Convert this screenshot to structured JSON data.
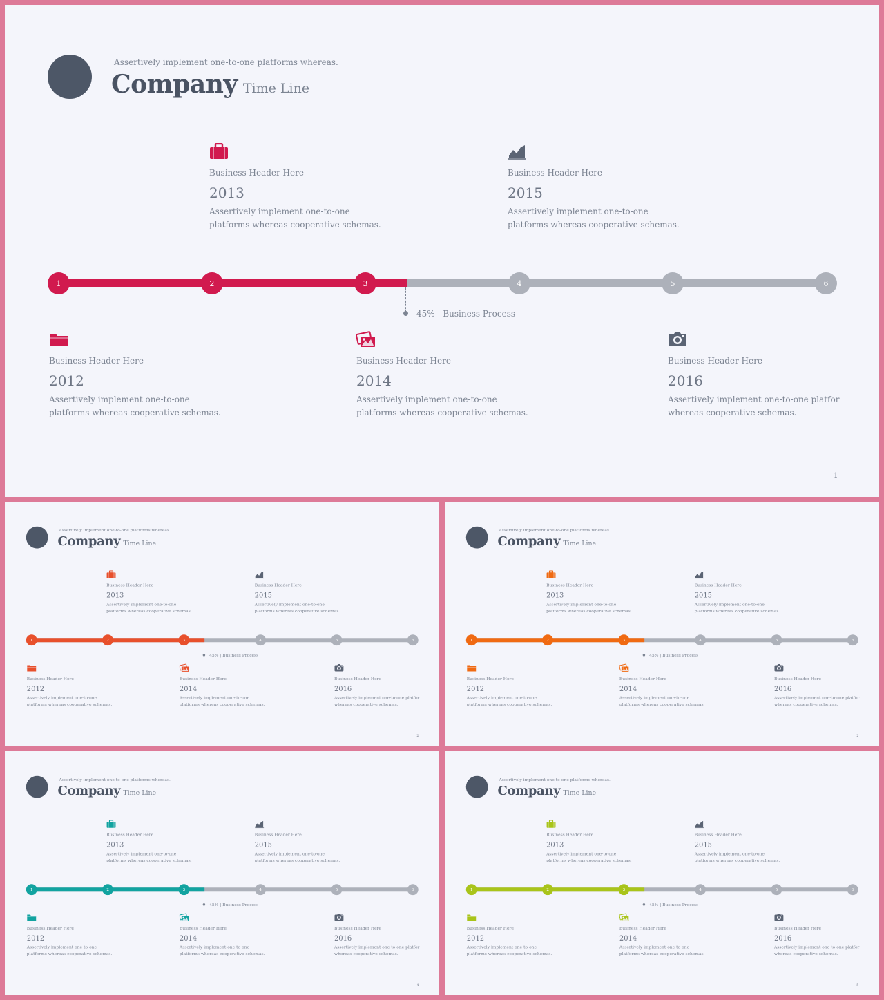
{
  "slides": [
    {
      "accent": "#d11a4e",
      "tagline": "Assertively implement one-to-one platforms whereas.",
      "title": "Company",
      "subtitle": "Time Line",
      "top_cards": [
        {
          "icon": "briefcase-icon",
          "header": "Business Header Here",
          "year": "2013",
          "text": "Assertively implement one-to-one platforms whereas cooperative schemas."
        },
        {
          "icon": "area-chart-icon",
          "header": "Business Header Here",
          "year": "2015",
          "text": "Assertively implement one-to-one platforms whereas cooperative schemas."
        }
      ],
      "bottom_cards": [
        {
          "icon": "folder-icon",
          "header": "Business Header Here",
          "year": "2012",
          "text": "Assertively implement one-to-one platforms whereas cooperative schemas."
        },
        {
          "icon": "images-icon",
          "header": "Business Header Here",
          "year": "2014",
          "text": "Assertively implement one-to-one platforms whereas cooperative schemas."
        },
        {
          "icon": "camera-icon",
          "header": "Business Header Here",
          "year": "2016",
          "text": "Assertively implement one-to-one platfor whereas cooperative schemas."
        }
      ],
      "timeline": {
        "steps": [
          "1",
          "2",
          "3",
          "4",
          "5",
          "6"
        ],
        "progress_percent": 45,
        "progress_label": "45% | Business Process"
      },
      "page_number": "1"
    },
    {
      "accent": "#e8502c",
      "tagline": "Assertively implement one-to-one platforms whereas.",
      "title": "Company",
      "subtitle": "Time Line",
      "top_cards": [
        {
          "icon": "briefcase-icon",
          "header": "Business Header Here",
          "year": "2013",
          "text": "Assertively implement one-to-one platforms whereas cooperative schemas."
        },
        {
          "icon": "area-chart-icon",
          "header": "Business Header Here",
          "year": "2015",
          "text": "Assertively implement one-to-one platforms whereas cooperative schemas."
        }
      ],
      "bottom_cards": [
        {
          "icon": "folder-icon",
          "header": "Business Header Here",
          "year": "2012",
          "text": "Assertively implement one-to-one platforms whereas cooperative schemas."
        },
        {
          "icon": "images-icon",
          "header": "Business Header Here",
          "year": "2014",
          "text": "Assertively implement one-to-one platforms whereas cooperative schemas."
        },
        {
          "icon": "camera-icon",
          "header": "Business Header Here",
          "year": "2016",
          "text": "Assertively implement one-to-one platfor whereas cooperative schemas."
        }
      ],
      "timeline": {
        "steps": [
          "1",
          "2",
          "3",
          "4",
          "5",
          "6"
        ],
        "progress_percent": 45,
        "progress_label": "45% | Business Process"
      },
      "page_number": "2"
    },
    {
      "accent": "#f06a12",
      "tagline": "Assertively implement one-to-one platforms whereas.",
      "title": "Company",
      "subtitle": "Time Line",
      "top_cards": [
        {
          "icon": "briefcase-icon",
          "header": "Business Header Here",
          "year": "2013",
          "text": "Assertively implement one-to-one platforms whereas cooperative schemas."
        },
        {
          "icon": "area-chart-icon",
          "header": "Business Header Here",
          "year": "2015",
          "text": "Assertively implement one-to-one platforms whereas cooperative schemas."
        }
      ],
      "bottom_cards": [
        {
          "icon": "folder-icon",
          "header": "Business Header Here",
          "year": "2012",
          "text": "Assertively implement one-to-one platforms whereas cooperative schemas."
        },
        {
          "icon": "images-icon",
          "header": "Business Header Here",
          "year": "2014",
          "text": "Assertively implement one-to-one platforms whereas cooperative schemas."
        },
        {
          "icon": "camera-icon",
          "header": "Business Header Here",
          "year": "2016",
          "text": "Assertively implement one-to-one platfor whereas cooperative schemas."
        }
      ],
      "timeline": {
        "steps": [
          "1",
          "2",
          "3",
          "4",
          "5",
          "6"
        ],
        "progress_percent": 45,
        "progress_label": "45% | Business Process"
      },
      "page_number": "2"
    },
    {
      "accent": "#12a3a0",
      "tagline": "Assertively implement one-to-one platforms whereas.",
      "title": "Company",
      "subtitle": "Time Line",
      "top_cards": [
        {
          "icon": "briefcase-icon",
          "header": "Business Header Here",
          "year": "2013",
          "text": "Assertively implement one-to-one platforms whereas cooperative schemas."
        },
        {
          "icon": "area-chart-icon",
          "header": "Business Header Here",
          "year": "2015",
          "text": "Assertively implement one-to-one platforms whereas cooperative schemas."
        }
      ],
      "bottom_cards": [
        {
          "icon": "folder-icon",
          "header": "Business Header Here",
          "year": "2012",
          "text": "Assertively implement one-to-one platforms whereas cooperative schemas."
        },
        {
          "icon": "images-icon",
          "header": "Business Header Here",
          "year": "2014",
          "text": "Assertively implement one-to-one platforms whereas cooperative schemas."
        },
        {
          "icon": "camera-icon",
          "header": "Business Header Here",
          "year": "2016",
          "text": "Assertively implement one-to-one platfor whereas cooperative schemas."
        }
      ],
      "timeline": {
        "steps": [
          "1",
          "2",
          "3",
          "4",
          "5",
          "6"
        ],
        "progress_percent": 45,
        "progress_label": "45% | Business Process"
      },
      "page_number": "4"
    },
    {
      "accent": "#a9c41a",
      "tagline": "Assertively implement one-to-one platforms whereas.",
      "title": "Company",
      "subtitle": "Time Line",
      "top_cards": [
        {
          "icon": "briefcase-icon",
          "header": "Business Header Here",
          "year": "2013",
          "text": "Assertively implement one-to-one platforms whereas cooperative schemas."
        },
        {
          "icon": "area-chart-icon",
          "header": "Business Header Here",
          "year": "2015",
          "text": "Assertively implement one-to-one platforms whereas cooperative schemas."
        }
      ],
      "bottom_cards": [
        {
          "icon": "folder-icon",
          "header": "Business Header Here",
          "year": "2012",
          "text": "Assertively implement one-to-one platforms whereas cooperative schemas."
        },
        {
          "icon": "images-icon",
          "header": "Business Header Here",
          "year": "2014",
          "text": "Assertively implement one-to-one platforms whereas cooperative schemas."
        },
        {
          "icon": "camera-icon",
          "header": "Business Header Here",
          "year": "2016",
          "text": "Assertively implement one-to-one platfor whereas cooperative schemas."
        }
      ],
      "timeline": {
        "steps": [
          "1",
          "2",
          "3",
          "4",
          "5",
          "6"
        ],
        "progress_percent": 45,
        "progress_label": "45% | Business Process"
      },
      "page_number": "5"
    }
  ]
}
